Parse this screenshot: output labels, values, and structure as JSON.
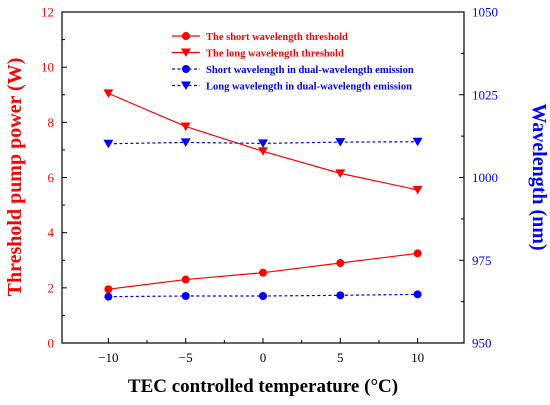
{
  "chart_data": {
    "type": "line",
    "x_label": "TEC controlled temperature (°C)",
    "y_left_label": "Threshold pump power (W)",
    "y_right_label": "Wavelength (nm)",
    "x_ticks": [
      -10,
      -5,
      0,
      5,
      10
    ],
    "y_left_ticks": [
      0,
      2,
      4,
      6,
      8,
      10,
      12
    ],
    "y_right_ticks": [
      950,
      975,
      1000,
      1025,
      1050
    ],
    "x_tick_labels": [
      "−10",
      "−5",
      "0",
      "5",
      "10"
    ],
    "y_left_tick_labels": [
      "0",
      "2",
      "4",
      "6",
      "8",
      "10",
      "12"
    ],
    "y_right_tick_labels": [
      "950",
      "975",
      "1000",
      "1025",
      "1050"
    ],
    "x_range": [
      -13,
      13
    ],
    "y_left_range": [
      0,
      12
    ],
    "y_right_range": [
      950,
      1050
    ],
    "legend_position": "top-right",
    "series": [
      {
        "name": "The short wavelength threshold",
        "axis": "left",
        "color": "#ff0000",
        "marker": "circle",
        "line": "solid",
        "x": [
          -10,
          -5,
          0,
          5,
          10
        ],
        "y": [
          1.95,
          2.3,
          2.55,
          2.9,
          3.25
        ]
      },
      {
        "name": "The long wavelength threshold",
        "axis": "left",
        "color": "#ff0000",
        "marker": "triangle-down",
        "line": "solid",
        "x": [
          -10,
          -5,
          0,
          5,
          10
        ],
        "y": [
          9.05,
          7.85,
          6.95,
          6.15,
          5.55
        ]
      },
      {
        "name": "Short wavelength in dual-wavelength emission",
        "axis": "right",
        "color": "#0000ff",
        "marker": "circle",
        "line": "dashed",
        "x": [
          -10,
          -5,
          0,
          5,
          10
        ],
        "y": [
          964.0,
          964.2,
          964.2,
          964.4,
          964.7
        ]
      },
      {
        "name": "Long wavelength in dual-wavelength emission",
        "axis": "right",
        "color": "#0000ff",
        "marker": "triangle-down",
        "line": "dashed",
        "x": [
          -10,
          -5,
          0,
          5,
          10
        ],
        "y": [
          1010.2,
          1010.6,
          1010.3,
          1010.7,
          1010.8
        ]
      }
    ]
  }
}
